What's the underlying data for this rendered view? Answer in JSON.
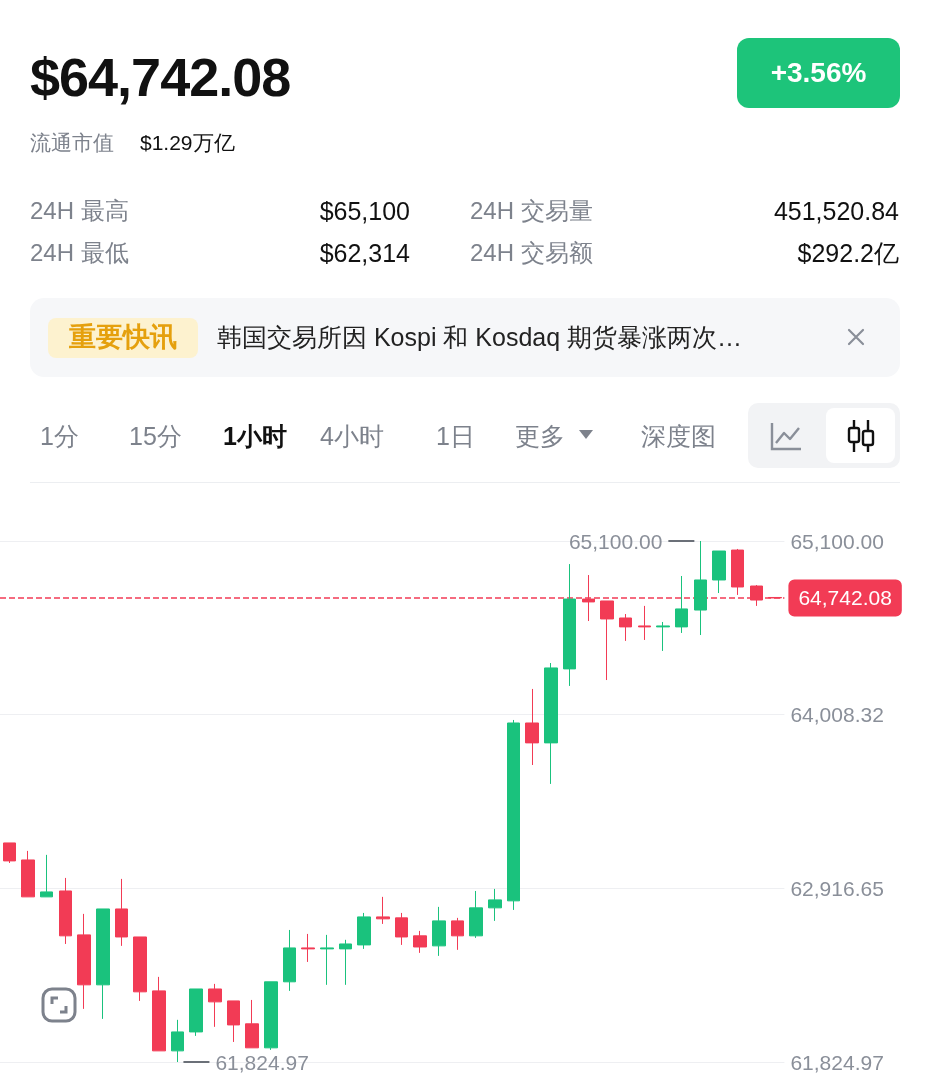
{
  "chart_data": [
    {
      "type": "other",
      "title": "$64,742.08",
      "annotations": [
        "+3.56%",
        "流通市值",
        "$1.29万亿",
        "24H 最高",
        "$65,100",
        "24H 最低",
        "$62,314",
        "24H 交易量",
        "451,520.84",
        "24H 交易额",
        "$292.2亿",
        "重要快讯",
        "韩国交易所因 Kospi 和 Kosdaq 期货暴涨两次…",
        "1分",
        "15分",
        "1小时",
        "4小时",
        "1日",
        "更多",
        "深度图"
      ]
    },
    {
      "type": "candlestick",
      "categories": [
        null,
        null,
        null,
        null,
        null,
        null,
        null,
        null,
        null,
        null,
        null,
        null,
        null,
        null,
        null,
        null,
        null,
        null,
        null,
        null,
        null,
        null,
        null,
        null,
        null,
        null,
        null,
        null,
        null,
        null,
        null,
        null,
        null,
        null,
        null,
        null,
        null,
        null,
        null,
        null,
        null,
        null
      ],
      "ohlc": [
        [
          63202,
          63202,
          63076,
          63089
        ],
        [
          63095,
          63152,
          62863,
          62863
        ],
        [
          62863,
          63127,
          62863,
          62894
        ],
        [
          62900,
          62982,
          62567,
          62618
        ],
        [
          62624,
          62756,
          62159,
          62310
        ],
        [
          62310,
          62787,
          62096,
          62787
        ],
        [
          62787,
          62976,
          62555,
          62611
        ],
        [
          62611,
          62611,
          62209,
          62266
        ],
        [
          62272,
          62360,
          61895,
          61895
        ],
        [
          61895,
          62090,
          61824.97,
          62014
        ],
        [
          62014,
          62284,
          61989,
          62284
        ],
        [
          62284,
          62316,
          62046,
          62203
        ],
        [
          62209,
          62209,
          61951,
          62058
        ],
        [
          62065,
          62215,
          61914,
          61914
        ],
        [
          61914,
          62329,
          61901,
          62329
        ],
        [
          62329,
          62655,
          62272,
          62542
        ],
        [
          62542,
          62630,
          62454,
          62536
        ],
        [
          62536,
          62624,
          62310,
          62542
        ],
        [
          62536,
          62593,
          62310,
          62567
        ],
        [
          62561,
          62762,
          62536,
          62737
        ],
        [
          62737,
          62863,
          62693,
          62725
        ],
        [
          62731,
          62762,
          62561,
          62611
        ],
        [
          62618,
          62649,
          62511,
          62548
        ],
        [
          62555,
          62800,
          62492,
          62712
        ],
        [
          62712,
          62731,
          62530,
          62618
        ],
        [
          62618,
          62900,
          62605,
          62794
        ],
        [
          62794,
          62913,
          62712,
          62844
        ],
        [
          62838,
          63975,
          62781,
          63956
        ],
        [
          63956,
          64170,
          63692,
          63831
        ],
        [
          63831,
          64333,
          63573,
          64302
        ],
        [
          64296,
          64955,
          64189,
          64735
        ],
        [
          64735,
          64886,
          64597,
          64717
        ],
        [
          64723,
          64723,
          64226,
          64610
        ],
        [
          64616,
          64641,
          64472,
          64560
        ],
        [
          64566,
          64692,
          64478,
          64560
        ],
        [
          64560,
          64591,
          64409,
          64566
        ],
        [
          64560,
          64880,
          64522,
          64673
        ],
        [
          64666,
          65100,
          64509,
          64855
        ],
        [
          64855,
          65037,
          64773,
          65037
        ],
        [
          65043,
          65050,
          64761,
          64811
        ],
        [
          64817,
          64823,
          64692,
          64729
        ],
        [
          64745,
          64745,
          64742.08,
          64742.08
        ]
      ],
      "colors": [
        "#f23b55",
        "#f23b55",
        "#1ac27d",
        "#f23b55",
        "#f23b55",
        "#1ac27d",
        "#f23b55",
        "#f23b55",
        "#f23b55",
        "#1ac27d",
        "#1ac27d",
        "#f23b55",
        "#f23b55",
        "#f23b55",
        "#1ac27d",
        "#1ac27d",
        "#f23b55",
        "#1ac27d",
        "#1ac27d",
        "#1ac27d",
        "#f23b55",
        "#f23b55",
        "#f23b55",
        "#1ac27d",
        "#f23b55",
        "#1ac27d",
        "#1ac27d",
        "#1ac27d",
        "#f23b55",
        "#1ac27d",
        "#1ac27d",
        "#f23b55",
        "#f23b55",
        "#f23b55",
        "#f23b55",
        "#1ac27d",
        "#1ac27d",
        "#1ac27d",
        "#1ac27d",
        "#f23b55",
        "#f23b55",
        "#f23b55"
      ],
      "ylim": [
        61824.97,
        65100
      ],
      "yticks": [
        {
          "value": 65100,
          "label": "65,100.00"
        },
        {
          "value": 64008.32,
          "label": "64,008.32"
        },
        {
          "value": 62916.65,
          "label": "62,916.65"
        },
        {
          "value": 61824.97,
          "label": "61,824.97"
        }
      ],
      "ref_lines": [
        {
          "axis": "y",
          "value": 64742.08,
          "label": "64,742.08",
          "color": "#f23b55",
          "line_style": "dashed"
        }
      ],
      "annotations": [
        "65,100.00",
        "61,824.97"
      ],
      "grid": "y",
      "tick_labels": "y"
    }
  ]
}
